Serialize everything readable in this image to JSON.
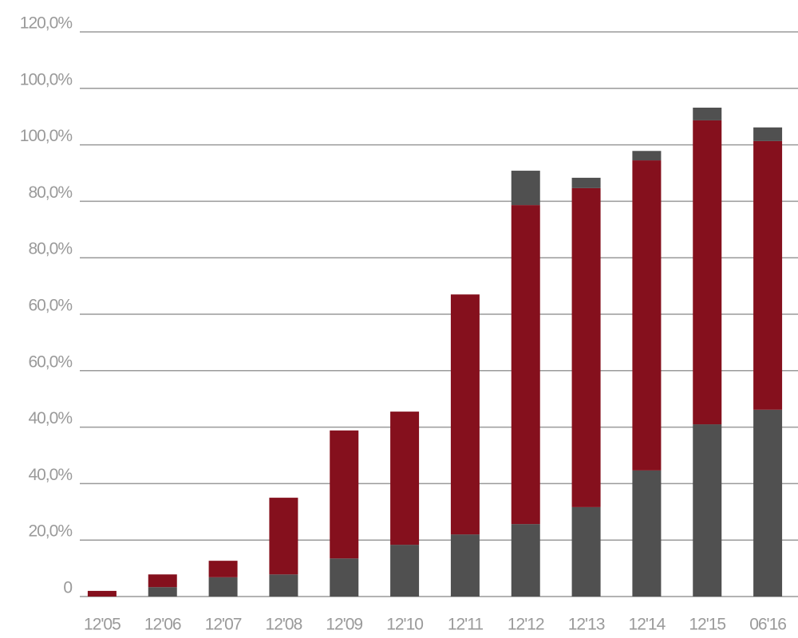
{
  "chart_data": {
    "type": "stacked-bar",
    "categories": [
      "12'05",
      "12'06",
      "12'07",
      "12'08",
      "12'09",
      "12'10",
      "12'11",
      "12'12",
      "12'13",
      "12'14",
      "12'15",
      "06'16"
    ],
    "series": [
      {
        "color": "#505050",
        "values": [
          0,
          2.0,
          4.1,
          4.7,
          8.1,
          11.0,
          13.2,
          15.4,
          19.0,
          26.8,
          36.6,
          39.7
        ]
      },
      {
        "color": "#85101d",
        "values": [
          1.2,
          2.7,
          3.5,
          16.3,
          27.2,
          28.3,
          51.0,
          67.8,
          67.8,
          65.9,
          64.6,
          57.1
        ]
      },
      {
        "color": "#505050",
        "values": [
          0,
          0,
          0,
          0,
          0,
          0,
          0,
          7.3,
          2.2,
          2.0,
          2.7,
          2.9
        ]
      }
    ],
    "ylim": [
      0,
      120
    ],
    "yticks": [
      0,
      {
        "value": 12,
        "label": "20,0%"
      },
      {
        "value": 24,
        "label": "40,0%"
      },
      {
        "value": 36,
        "label": "40,0%"
      },
      {
        "value": 48,
        "label": "60,0%"
      },
      {
        "value": 60,
        "label": "60,0%"
      },
      {
        "value": 72,
        "label": "80,0%"
      },
      {
        "value": 84,
        "label": "80,0%"
      },
      {
        "value": 96,
        "label": "100,0%"
      },
      {
        "value": 108,
        "label": "100,0%"
      },
      {
        "value": 120,
        "label": "120,0%"
      }
    ],
    "grid": true
  }
}
